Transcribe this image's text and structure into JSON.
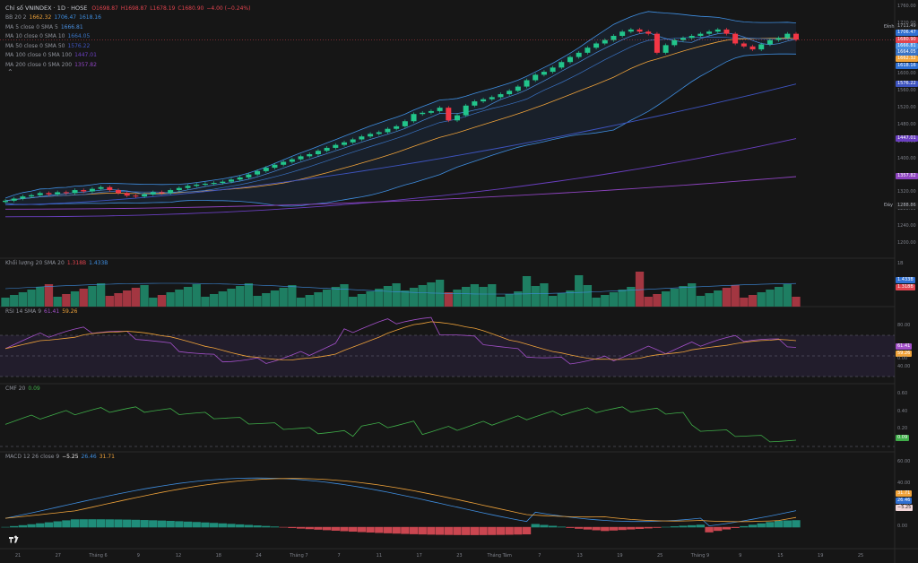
{
  "header": {
    "symbol_label": "Chỉ số VNINDEX · 1D · HOSE",
    "ohlc": [
      {
        "k": "O",
        "v": "1698.87"
      },
      {
        "k": "H",
        "v": "1698.87"
      },
      {
        "k": "L",
        "v": "1678.19"
      },
      {
        "k": "C",
        "v": "1680.90"
      },
      {
        "k": "chg",
        "v": "−4.00 (−0.24%)"
      }
    ]
  },
  "indicators": [
    {
      "name": "BB 20 2",
      "values": [
        "1662.32",
        "1706.47",
        "1618.16"
      ],
      "colors": [
        "#f0a33a",
        "#3f8ee0",
        "#3f8ee0"
      ]
    },
    {
      "name": "MA 5 close 0 SMA 5",
      "values": [
        "1666.81"
      ],
      "colors": [
        "#4a8fe0"
      ]
    },
    {
      "name": "MA 10 close 0 SMA 10",
      "values": [
        "1664.05"
      ],
      "colors": [
        "#3a73c4"
      ]
    },
    {
      "name": "MA 50 close 0 SMA 50",
      "values": [
        "1576.22"
      ],
      "colors": [
        "#3e54c0"
      ]
    },
    {
      "name": "MA 100 close 0 SMA 100",
      "values": [
        "1447.01"
      ],
      "colors": [
        "#6a3fc0"
      ]
    },
    {
      "name": "MA 200 close 0 SMA 200",
      "values": [
        "1357.82"
      ],
      "colors": [
        "#8e44c0"
      ]
    }
  ],
  "panes": {
    "volume": {
      "name": "Khối lượng 20 SMA 20",
      "values": [
        "1.318B",
        "1.433B"
      ],
      "colors": [
        "#e0434e",
        "#3f8ee0"
      ]
    },
    "rsi": {
      "name": "RSI 14 SMA 9",
      "values": [
        "61.41",
        "59.26"
      ],
      "colors": [
        "#a350c9",
        "#f0a33a"
      ]
    },
    "cmf": {
      "name": "CMF 20",
      "values": [
        "0.09"
      ],
      "colors": [
        "#3fae49"
      ]
    },
    "macd": {
      "name": "MACD 12 26 close 9",
      "values": [
        "−5.25",
        "26.46",
        "31.71"
      ],
      "colors": [
        "#f0eeee",
        "#3f8ee0",
        "#f0a33a"
      ]
    }
  },
  "price_axis": {
    "ticks": [
      "1760.00",
      "1720.00",
      "1680.00",
      "1640.00",
      "1600.00",
      "1560.00",
      "1520.00",
      "1480.00",
      "1440.00",
      "1400.00",
      "1360.00",
      "1320.00",
      "1280.00",
      "1240.00",
      "1200.00"
    ],
    "top_label": "Đỉnh",
    "bottom_label": "Đáy",
    "tags": [
      {
        "text": "1711.49",
        "color": "#1e1e1e",
        "fg": "#b2b5be",
        "value": 1711.49
      },
      {
        "text": "1706.47",
        "color": "#2f6fd1",
        "value": 1706.47
      },
      {
        "text": "1680.90",
        "color": "#e0434e",
        "value": 1680.9
      },
      {
        "text": "1666.81",
        "color": "#4a8fe0",
        "value": 1666.81
      },
      {
        "text": "1664.05",
        "color": "#3a73c4",
        "value": 1664.05
      },
      {
        "text": "1662.32",
        "color": "#f0a33a",
        "value": 1662.32
      },
      {
        "text": "1618.16",
        "color": "#2f6fd1",
        "value": 1618.16
      },
      {
        "text": "1576.22",
        "color": "#3e54c0",
        "value": 1576.22
      },
      {
        "text": "1447.01",
        "color": "#6a3fc0",
        "value": 1447.01
      },
      {
        "text": "1357.82",
        "color": "#8e44c0",
        "value": 1357.82
      },
      {
        "text": "1288.86",
        "color": "#1e1e1e",
        "fg": "#b2b5be",
        "value": 1288.86
      }
    ]
  },
  "volume_axis": {
    "ticks": [
      "1B"
    ],
    "tags": [
      {
        "text": "1.433B",
        "color": "#2f6fd1"
      },
      {
        "text": "1.318B",
        "color": "#e0434e"
      }
    ]
  },
  "rsi_axis": {
    "ticks": [
      "80.00",
      "40.00"
    ],
    "tags": [
      {
        "text": "61.41",
        "color": "#a350c9"
      },
      {
        "text": "59.26",
        "color": "#f0a33a"
      }
    ]
  },
  "cmf_axis": {
    "ticks": [
      "0.60",
      "0.40",
      "0.20",
      "0.00"
    ],
    "tags": [
      {
        "text": "0.09",
        "color": "#3fae49"
      }
    ]
  },
  "macd_axis": {
    "ticks": [
      "60.00",
      "40.00",
      "20.00",
      "0.00"
    ],
    "tags": [
      {
        "text": "31.71",
        "color": "#f0a33a"
      },
      {
        "text": "26.46",
        "color": "#2f6fd1"
      },
      {
        "text": "−5.25",
        "color": "#f3d7d9",
        "fg": "#222"
      }
    ]
  },
  "x_axis": {
    "ticks": [
      "21",
      "27",
      "Tháng 6",
      "9",
      "12",
      "18",
      "24",
      "Tháng 7",
      "7",
      "11",
      "17",
      "23",
      "Tháng Tám",
      "7",
      "13",
      "19",
      "25",
      "Tháng 9",
      "9",
      "15",
      "19",
      "25"
    ]
  },
  "chart_data": {
    "type": "candlestick",
    "series": [
      {
        "name": "VNINDEX",
        "values": [
          1300,
          1305,
          1310,
          1313,
          1318,
          1315,
          1320,
          1318,
          1325,
          1322,
          1328,
          1332,
          1325,
          1318,
          1312,
          1310,
          1315,
          1320,
          1318,
          1325,
          1330,
          1335,
          1338,
          1340,
          1342,
          1345,
          1350,
          1355,
          1362,
          1370,
          1378,
          1385,
          1392,
          1398,
          1405,
          1410,
          1418,
          1425,
          1432,
          1438,
          1445,
          1452,
          1458,
          1462,
          1470,
          1476,
          1488,
          1505,
          1508,
          1512,
          1520,
          1490,
          1502,
          1525,
          1535,
          1540,
          1545,
          1552,
          1560,
          1570,
          1585,
          1598,
          1605,
          1615,
          1628,
          1640,
          1650,
          1662,
          1672,
          1680,
          1690,
          1700,
          1705,
          1700,
          1695,
          1650,
          1668,
          1680,
          1685,
          1690,
          1695,
          1700,
          1705,
          1695,
          1672,
          1665,
          1658,
          1670,
          1680,
          1685,
          1695,
          1680.9
        ]
      }
    ]
  }
}
